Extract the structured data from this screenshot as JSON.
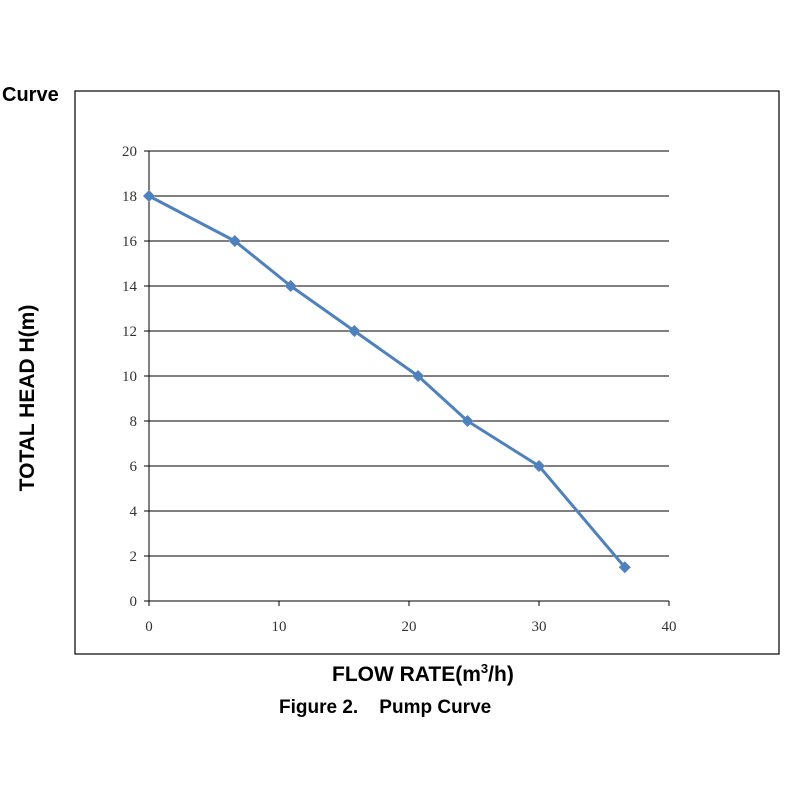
{
  "heading": "Curve",
  "caption": "Figure 2.    Pump Curve",
  "chart_data": {
    "type": "line",
    "title": "",
    "xlabel_main": "FLOW RATE(m",
    "xlabel_sup": "3",
    "xlabel_tail": "/h)",
    "ylabel": "TOTAL HEAD H(m)",
    "xlim": [
      0,
      40
    ],
    "ylim": [
      0,
      20
    ],
    "x_ticks": [
      "0",
      "10",
      "20",
      "30",
      "40"
    ],
    "y_ticks": [
      "0",
      "2",
      "4",
      "6",
      "8",
      "10",
      "12",
      "14",
      "16",
      "18",
      "20"
    ],
    "grid": "horizontal",
    "legend": "none",
    "series": [
      {
        "x": [
          0,
          6.6,
          10.9,
          15.8,
          20.7,
          24.5,
          30.0,
          36.6
        ],
        "y": [
          18,
          16,
          14,
          12,
          10,
          8,
          6,
          1.5
        ]
      }
    ],
    "line_color": "#4f81bd",
    "marker": "diamond"
  }
}
